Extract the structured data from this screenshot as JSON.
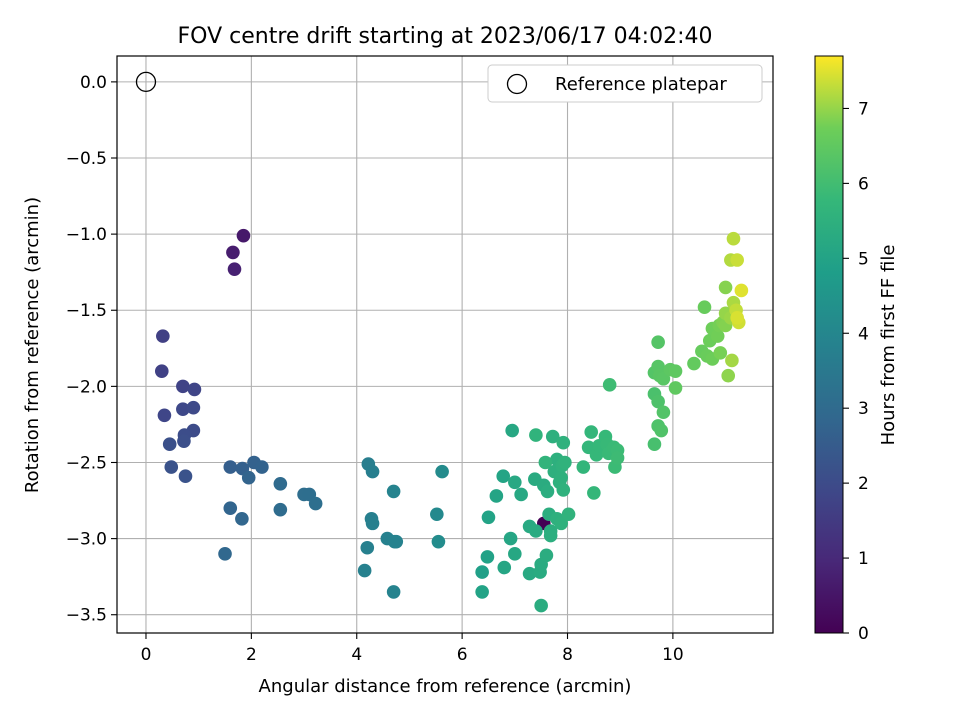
{
  "chart_data": {
    "type": "scatter",
    "title": "FOV centre drift starting at 2023/06/17 04:02:40",
    "xlabel": "Angular distance from reference (arcmin)",
    "ylabel": "Rotation from reference (arcmin)",
    "xlim": [
      -0.55,
      11.9
    ],
    "ylim": [
      -3.62,
      0.17
    ],
    "xticks": [
      0,
      2,
      4,
      6,
      8,
      10
    ],
    "yticks": [
      0.0,
      -0.5,
      -1.0,
      -1.5,
      -2.0,
      -2.5,
      -3.0,
      -3.5
    ],
    "xtick_labels": [
      "0",
      "2",
      "4",
      "6",
      "8",
      "10"
    ],
    "ytick_labels": [
      "0.0",
      "−0.5",
      "−1.0",
      "−1.5",
      "−2.0",
      "−2.5",
      "−3.0",
      "−3.5"
    ],
    "grid": true,
    "legend": {
      "placement": "top-right",
      "entries": [
        "Reference platepar"
      ]
    },
    "reference_point": {
      "label": "Reference platepar",
      "x": 0,
      "y": 0
    },
    "colorbar": {
      "label": "Hours from first FF file",
      "range": [
        0,
        7.7
      ],
      "ticks": [
        0,
        1,
        2,
        3,
        4,
        5,
        6,
        7
      ],
      "tick_labels": [
        "0",
        "1",
        "2",
        "3",
        "4",
        "5",
        "6",
        "7"
      ],
      "colormap": "viridis"
    },
    "series": [
      {
        "columns": [
          "x",
          "y",
          "hours"
        ],
        "points": [
          [
            7.55,
            -2.9,
            0.0
          ],
          [
            1.85,
            -1.01,
            0.6
          ],
          [
            1.65,
            -1.12,
            0.7
          ],
          [
            1.68,
            -1.23,
            0.8
          ],
          [
            0.32,
            -1.67,
            1.65
          ],
          [
            0.3,
            -1.9,
            1.7
          ],
          [
            0.7,
            -2.0,
            1.75
          ],
          [
            0.92,
            -2.02,
            1.8
          ],
          [
            0.35,
            -2.19,
            1.85
          ],
          [
            0.7,
            -2.15,
            1.9
          ],
          [
            0.9,
            -2.14,
            1.95
          ],
          [
            0.9,
            -2.29,
            2.0
          ],
          [
            0.73,
            -2.32,
            2.05
          ],
          [
            0.72,
            -2.36,
            2.1
          ],
          [
            0.45,
            -2.38,
            2.15
          ],
          [
            0.48,
            -2.53,
            2.2
          ],
          [
            0.75,
            -2.59,
            2.25
          ],
          [
            1.6,
            -2.53,
            2.6
          ],
          [
            1.83,
            -2.54,
            2.65
          ],
          [
            2.05,
            -2.5,
            2.7
          ],
          [
            2.2,
            -2.53,
            2.72
          ],
          [
            1.95,
            -2.6,
            2.75
          ],
          [
            1.6,
            -2.8,
            2.8
          ],
          [
            1.82,
            -2.87,
            2.85
          ],
          [
            1.5,
            -3.1,
            2.9
          ],
          [
            2.55,
            -2.64,
            3.0
          ],
          [
            2.55,
            -2.81,
            3.05
          ],
          [
            3.0,
            -2.71,
            3.1
          ],
          [
            3.1,
            -2.71,
            3.12
          ],
          [
            3.22,
            -2.77,
            3.15
          ],
          [
            4.22,
            -2.51,
            3.7
          ],
          [
            4.3,
            -2.56,
            3.72
          ],
          [
            4.28,
            -2.87,
            3.74
          ],
          [
            4.3,
            -2.9,
            3.76
          ],
          [
            4.2,
            -3.06,
            3.78
          ],
          [
            4.15,
            -3.21,
            3.8
          ],
          [
            4.58,
            -3.0,
            3.82
          ],
          [
            4.72,
            -3.02,
            3.84
          ],
          [
            4.75,
            -3.02,
            3.86
          ],
          [
            4.7,
            -2.69,
            3.88
          ],
          [
            4.7,
            -3.35,
            3.9
          ],
          [
            5.52,
            -2.84,
            4.1
          ],
          [
            5.62,
            -2.56,
            4.15
          ],
          [
            5.55,
            -3.02,
            4.2
          ],
          [
            6.38,
            -3.22,
            4.9
          ],
          [
            6.48,
            -3.12,
            4.95
          ],
          [
            6.5,
            -2.86,
            5.0
          ],
          [
            6.38,
            -3.35,
            5.0
          ],
          [
            6.65,
            -2.72,
            5.05
          ],
          [
            6.78,
            -2.59,
            5.05
          ],
          [
            6.8,
            -3.19,
            5.1
          ],
          [
            6.92,
            -3.0,
            5.1
          ],
          [
            6.95,
            -2.29,
            5.15
          ],
          [
            7.0,
            -3.1,
            5.15
          ],
          [
            7.0,
            -2.63,
            5.2
          ],
          [
            7.12,
            -2.71,
            5.2
          ],
          [
            7.28,
            -2.92,
            5.25
          ],
          [
            7.28,
            -3.23,
            5.25
          ],
          [
            7.38,
            -2.61,
            5.28
          ],
          [
            7.4,
            -2.95,
            5.3
          ],
          [
            7.48,
            -3.22,
            5.3
          ],
          [
            7.5,
            -3.17,
            5.32
          ],
          [
            7.55,
            -2.65,
            5.33
          ],
          [
            7.5,
            -3.44,
            5.35
          ],
          [
            7.6,
            -3.11,
            5.36
          ],
          [
            7.62,
            -2.69,
            5.38
          ],
          [
            7.65,
            -2.84,
            5.4
          ],
          [
            7.68,
            -2.95,
            5.42
          ],
          [
            7.68,
            -2.98,
            5.44
          ],
          [
            7.72,
            -2.33,
            5.45
          ],
          [
            7.75,
            -2.56,
            5.46
          ],
          [
            7.8,
            -2.48,
            5.48
          ],
          [
            7.8,
            -2.87,
            5.5
          ],
          [
            7.85,
            -2.63,
            5.5
          ],
          [
            7.88,
            -2.6,
            5.52
          ],
          [
            7.9,
            -2.52,
            5.54
          ],
          [
            7.92,
            -2.37,
            5.55
          ],
          [
            7.92,
            -2.68,
            5.55
          ],
          [
            7.88,
            -2.9,
            5.56
          ],
          [
            7.95,
            -2.5,
            5.58
          ],
          [
            8.02,
            -2.84,
            5.6
          ],
          [
            7.4,
            -2.32,
            5.62
          ],
          [
            7.58,
            -2.5,
            5.64
          ],
          [
            8.3,
            -2.53,
            5.7
          ],
          [
            8.4,
            -2.4,
            5.72
          ],
          [
            8.45,
            -2.3,
            5.74
          ],
          [
            8.5,
            -2.7,
            5.75
          ],
          [
            8.55,
            -2.45,
            5.76
          ],
          [
            8.6,
            -2.39,
            5.78
          ],
          [
            8.72,
            -2.33,
            5.8
          ],
          [
            8.75,
            -2.38,
            5.82
          ],
          [
            8.78,
            -2.44,
            5.84
          ],
          [
            8.88,
            -2.4,
            5.86
          ],
          [
            8.9,
            -2.53,
            5.88
          ],
          [
            8.95,
            -2.42,
            5.9
          ],
          [
            8.95,
            -2.47,
            5.92
          ],
          [
            8.8,
            -1.99,
            5.95
          ],
          [
            9.65,
            -2.38,
            6.1
          ],
          [
            9.65,
            -2.05,
            6.15
          ],
          [
            9.72,
            -2.1,
            6.2
          ],
          [
            9.72,
            -2.26,
            6.22
          ],
          [
            9.78,
            -2.29,
            6.25
          ],
          [
            9.82,
            -2.17,
            6.28
          ],
          [
            9.65,
            -1.91,
            6.3
          ],
          [
            9.72,
            -1.71,
            6.32
          ],
          [
            9.72,
            -1.87,
            6.35
          ],
          [
            9.75,
            -1.93,
            6.38
          ],
          [
            9.82,
            -1.95,
            6.4
          ],
          [
            9.95,
            -1.89,
            6.45
          ],
          [
            10.05,
            -1.9,
            6.48
          ],
          [
            10.05,
            -2.01,
            6.5
          ],
          [
            10.4,
            -1.85,
            6.55
          ],
          [
            10.55,
            -1.77,
            6.6
          ],
          [
            10.6,
            -1.48,
            6.62
          ],
          [
            10.65,
            -1.8,
            6.65
          ],
          [
            10.7,
            -1.7,
            6.68
          ],
          [
            10.75,
            -1.82,
            6.7
          ],
          [
            10.75,
            -1.62,
            6.72
          ],
          [
            10.85,
            -1.67,
            6.75
          ],
          [
            10.88,
            -1.6,
            6.78
          ],
          [
            10.9,
            -1.78,
            6.8
          ],
          [
            10.95,
            -1.58,
            6.85
          ],
          [
            11.0,
            -1.6,
            6.88
          ],
          [
            11.0,
            -1.35,
            6.9
          ],
          [
            11.05,
            -1.93,
            6.95
          ],
          [
            11.0,
            -1.52,
            7.0
          ],
          [
            11.1,
            -1.55,
            7.05
          ],
          [
            11.12,
            -1.83,
            7.1
          ],
          [
            11.15,
            -1.45,
            7.15
          ],
          [
            11.1,
            -1.17,
            7.2
          ],
          [
            11.15,
            -1.03,
            7.25
          ],
          [
            11.2,
            -1.5,
            7.3
          ],
          [
            11.22,
            -1.17,
            7.35
          ],
          [
            11.25,
            -1.58,
            7.4
          ],
          [
            11.22,
            -1.55,
            7.45
          ],
          [
            11.3,
            -1.37,
            7.5
          ]
        ]
      }
    ]
  }
}
